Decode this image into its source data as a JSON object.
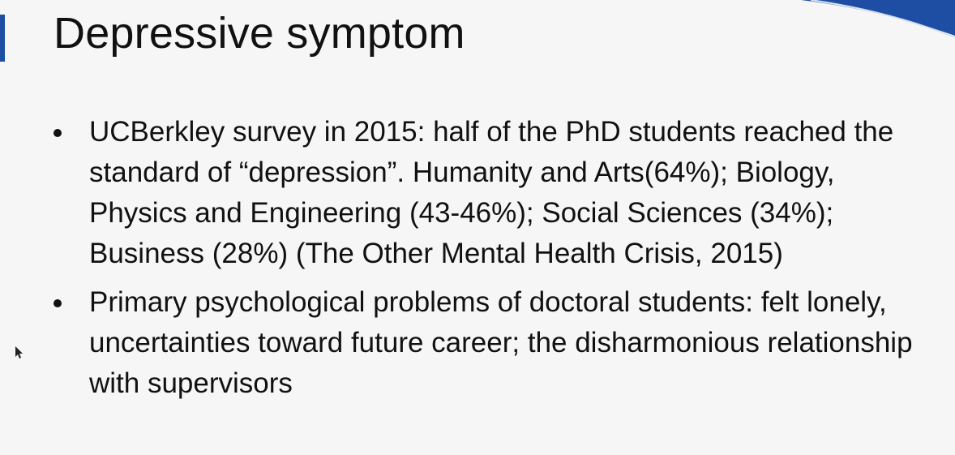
{
  "slide": {
    "title": "Depressive symptom",
    "bullets": [
      "UCBerkley survey in 2015: half of the PhD students reached the standard of “depression”. Humanity and Arts(64%); Biology, Physics and Engineering (43-46%); Social Sciences (34%); Business (28%) (The Other Mental Health Crisis, 2015)",
      "Primary psychological problems of doctoral students: felt lonely, uncertainties toward future career; the disharmonious relationship with supervisors"
    ]
  },
  "colors": {
    "background": "#f6f6f6",
    "text": "#111111",
    "accent": "#1e4ea3"
  },
  "icons": {
    "bullet": "bullet-dot-icon",
    "cursor": "mouse-pointer-icon"
  }
}
